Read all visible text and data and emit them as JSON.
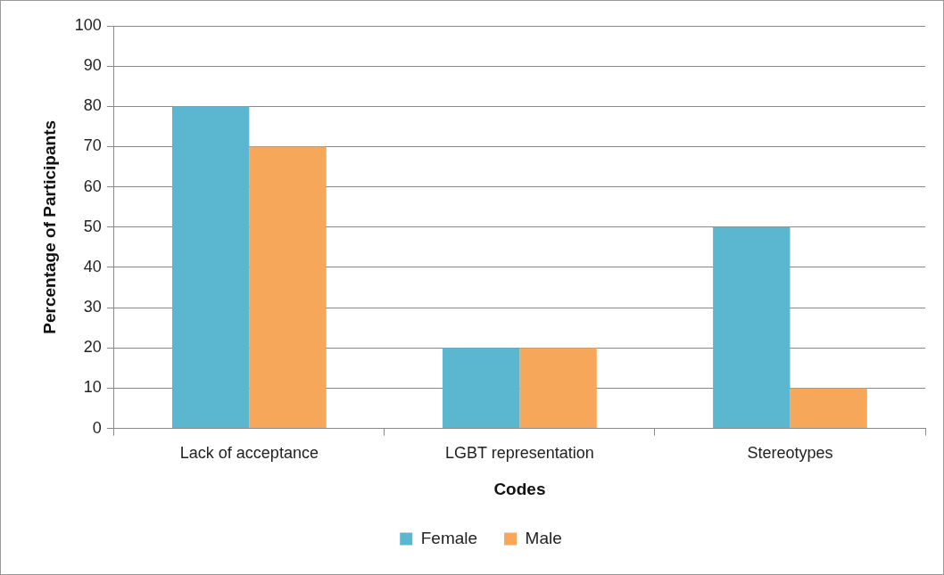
{
  "chart_data": {
    "type": "bar",
    "xlabel": "Codes",
    "ylabel": "Percentage of Participants",
    "categories": [
      "Lack of acceptance",
      "LGBT representation",
      "Stereotypes"
    ],
    "series": [
      {
        "name": "Female",
        "color": "#5ab7cf",
        "values": [
          80,
          20,
          50
        ]
      },
      {
        "name": "Male",
        "color": "#f7a75a",
        "values": [
          70,
          20,
          10
        ]
      }
    ],
    "ylim": [
      0,
      100
    ],
    "yticks": [
      0,
      10,
      20,
      30,
      40,
      50,
      60,
      70,
      80,
      90,
      100
    ],
    "grid": "y",
    "legend": "bottom"
  }
}
